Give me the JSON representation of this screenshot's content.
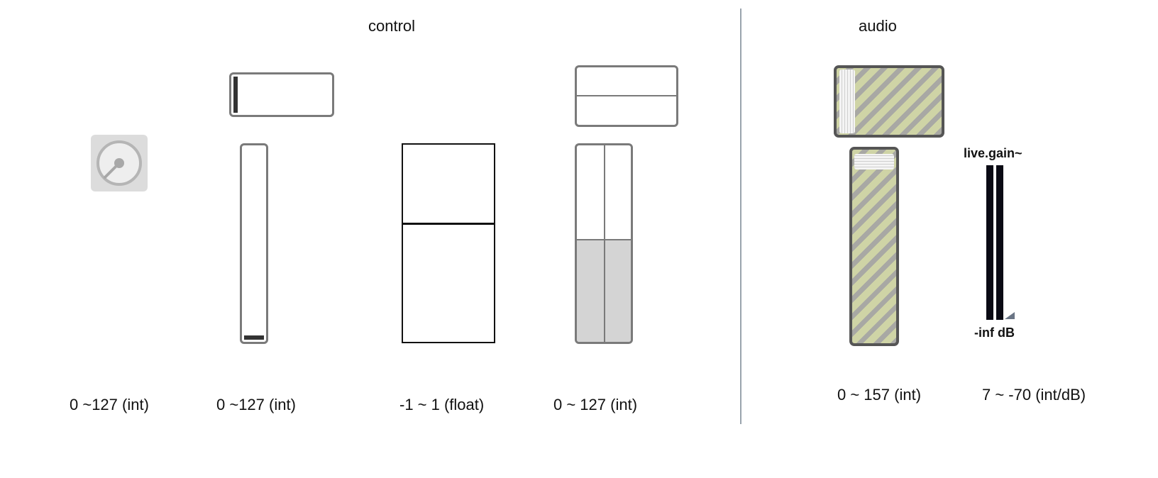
{
  "sections": {
    "control": "control",
    "audio": "audio"
  },
  "widgets": {
    "knob": {
      "label": "0 ~127 (int)",
      "value_fraction": 0
    },
    "hslider": {
      "label": "0 ~127 (int)",
      "value_fraction": 0
    },
    "vslider": {
      "label": "0 ~127 (int)",
      "value_fraction": 0
    },
    "float_slider": {
      "label": "-1 ~ 1 (float)",
      "value_fraction": 0.6
    },
    "multislider": {
      "label": "0 ~ 127 (int)",
      "h_value_fraction": 0.5,
      "v_value_fraction": 0.5
    },
    "gain": {
      "label": "0 ~ 157  (int)",
      "value_fraction": 0
    },
    "live_gain": {
      "title": "live.gain~",
      "value_text": "-inf dB",
      "label": "7 ~ -70 (int/dB)"
    }
  },
  "colors": {
    "outline": "#7a7a7a",
    "stripe_a": "#cfd4a6",
    "stripe_b": "#a8a8a4",
    "meter": "#0a0a14",
    "divider": "#9aa4ad"
  }
}
